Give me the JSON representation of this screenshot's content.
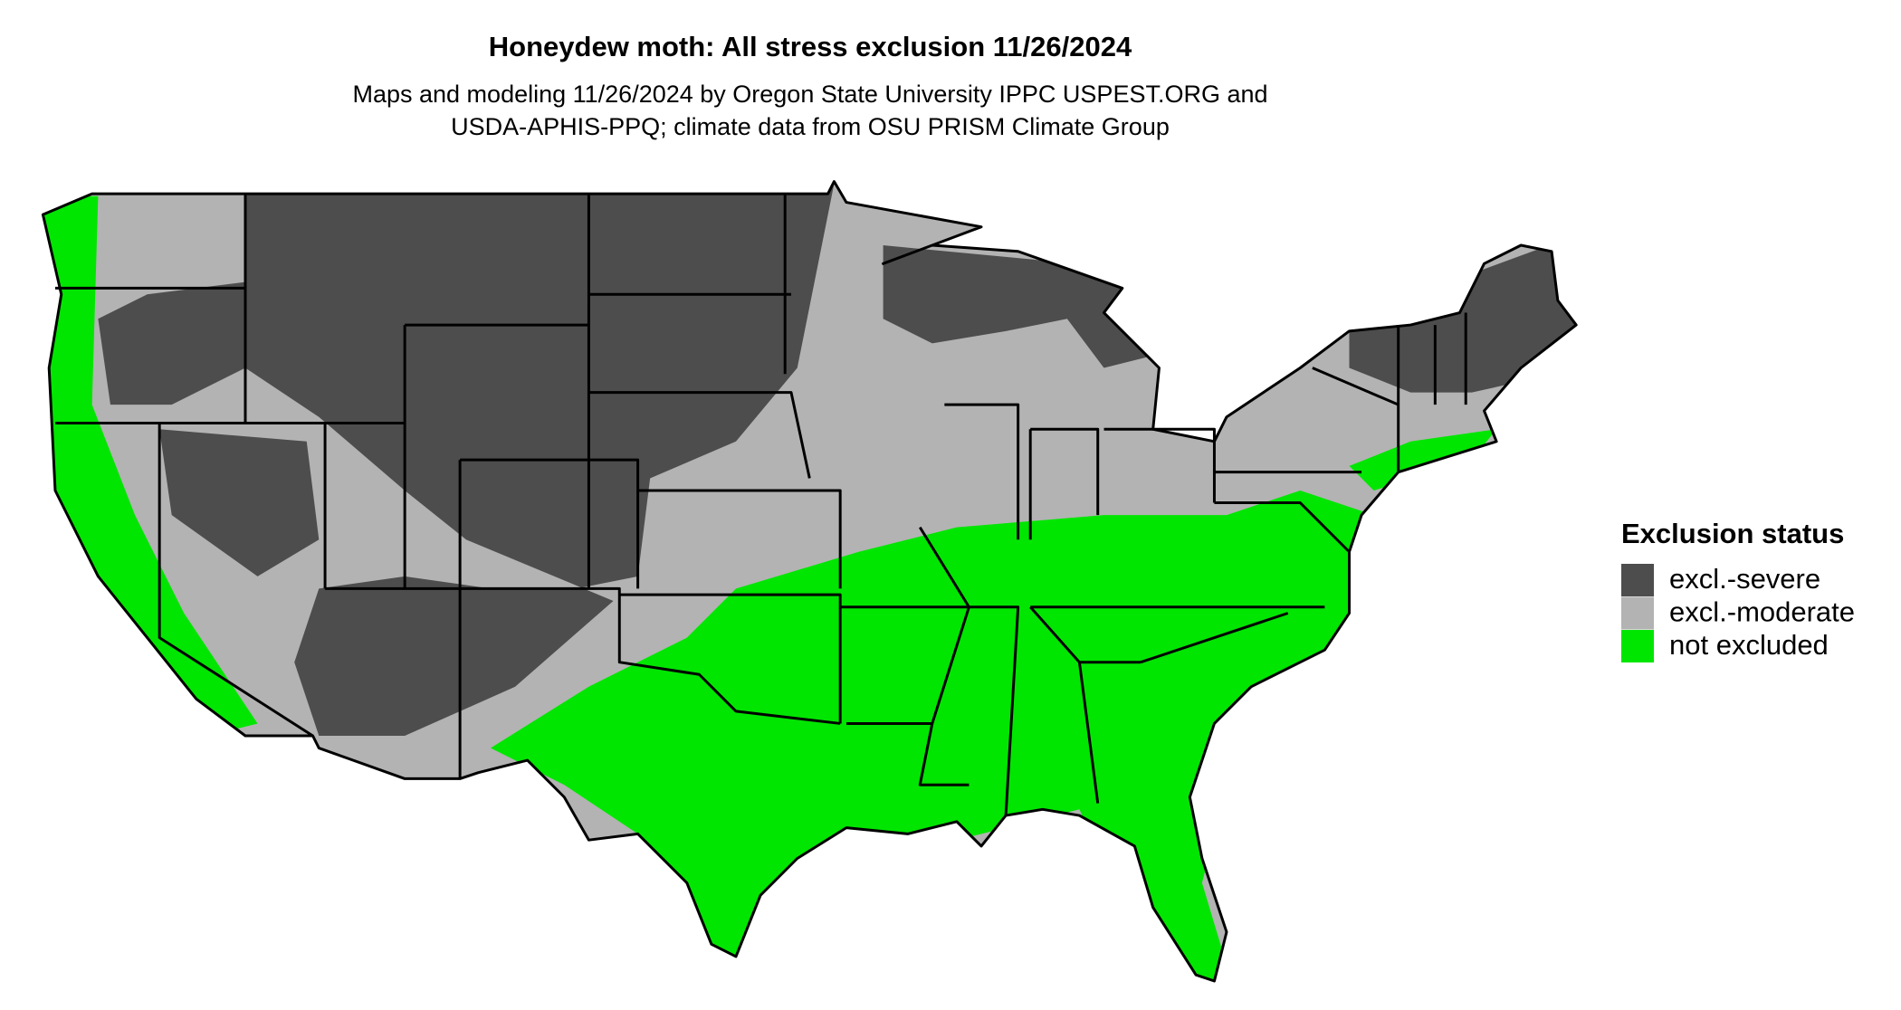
{
  "header": {
    "title": "Honeydew moth: All stress exclusion 11/26/2024",
    "subtitle_lines": [
      "Maps and modeling 11/26/2024 by Oregon State University IPPC USPEST.ORG and",
      "USDA-APHIS-PPQ; climate data from OSU PRISM Climate Group"
    ]
  },
  "legend": {
    "title": "Exclusion status",
    "items": [
      {
        "label": "excl.-severe",
        "color": "#4d4d4d"
      },
      {
        "label": "excl.-moderate",
        "color": "#b3b3b3"
      },
      {
        "label": "not excluded",
        "color": "#00e600"
      }
    ]
  }
}
